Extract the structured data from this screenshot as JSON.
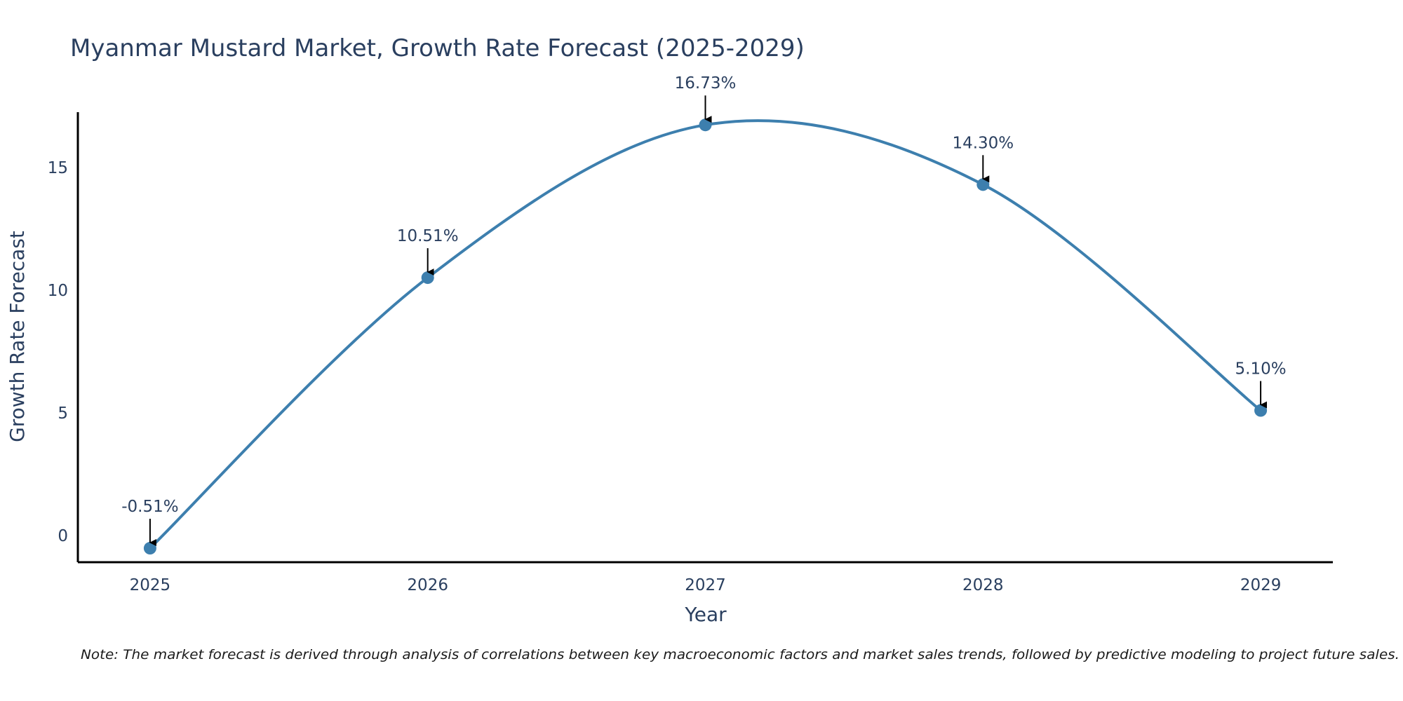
{
  "chart_data": {
    "type": "line",
    "title": "Myanmar Mustard Market, Growth Rate Forecast (2025-2029)",
    "xlabel": "Year",
    "ylabel": "Growth Rate Forecast",
    "categories": [
      "2025",
      "2026",
      "2027",
      "2028",
      "2029"
    ],
    "series": [
      {
        "name": "Growth Rate Forecast",
        "values": [
          -0.51,
          10.51,
          16.73,
          14.3,
          5.1
        ],
        "labels": [
          "-0.51%",
          "10.51%",
          "16.73%",
          "14.30%",
          "5.10%"
        ],
        "color": "#3d7fae"
      }
    ],
    "yticks": [
      0,
      5,
      10,
      15
    ],
    "ytick_labels": [
      "0",
      "5",
      "10",
      "15"
    ],
    "ylim": [
      -1.08,
      17.25
    ],
    "xlim": [
      -0.26,
      4.26
    ],
    "grid": false,
    "line_shape": "spline",
    "annotation_arrows": true
  },
  "note": "Note: The market forecast is derived through analysis of correlations between key macroeconomic factors and market sales trends, followed by predictive modeling to project future sales.",
  "colors": {
    "line": "#3d7fae",
    "marker": "#3d7fae",
    "axis": "#000000",
    "text": "#2a3f5f",
    "arrow": "#000000"
  }
}
